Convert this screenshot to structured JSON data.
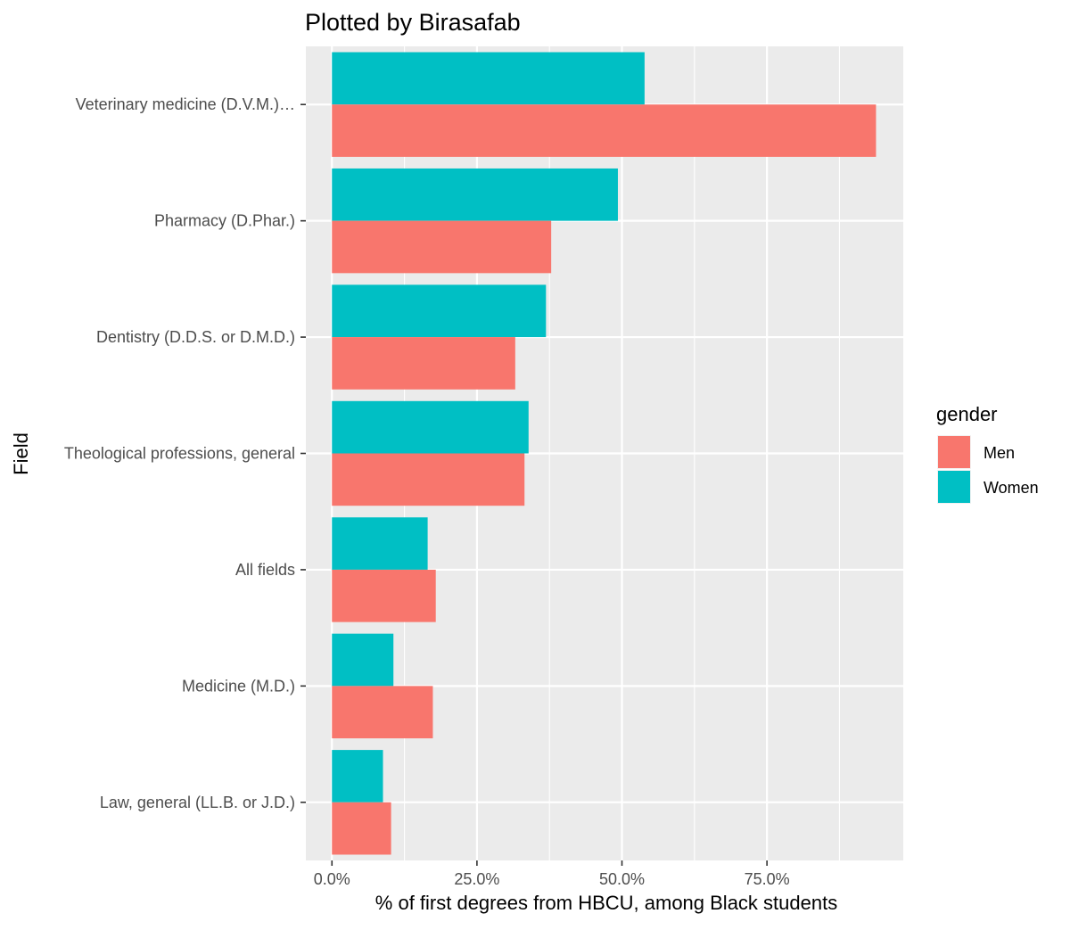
{
  "chart_data": {
    "type": "bar",
    "orientation": "horizontal",
    "title": "Plotted by Birasafab",
    "xlabel": "% of first degrees from HBCU, among Black students",
    "ylabel": "Field",
    "categories": [
      "Veterinary medicine (D.V.M.)…",
      "Pharmacy (D.Phar.)",
      "Dentistry (D.D.S. or D.M.D.)",
      "Theological professions, general",
      "All fields",
      "Medicine (M.D.)",
      "Law, general (LL.B. or J.D.)"
    ],
    "series": [
      {
        "name": "Men",
        "color": "#F8766D",
        "values": [
          93.8,
          37.8,
          31.6,
          33.2,
          17.9,
          17.4,
          10.2
        ]
      },
      {
        "name": "Women",
        "color": "#00BFC4",
        "values": [
          53.9,
          49.3,
          36.9,
          33.9,
          16.5,
          10.6,
          8.8
        ]
      }
    ],
    "xlim": [
      -4.5,
      98.5
    ],
    "x_ticks": [
      0,
      25,
      50,
      75
    ],
    "x_tick_labels": [
      "0.0%",
      "25.0%",
      "50.0%",
      "75.0%"
    ],
    "legend": {
      "title": "gender",
      "position": "right"
    },
    "grid": true,
    "panel_background": "#EBEBEB",
    "grid_color": "#FFFFFF"
  }
}
